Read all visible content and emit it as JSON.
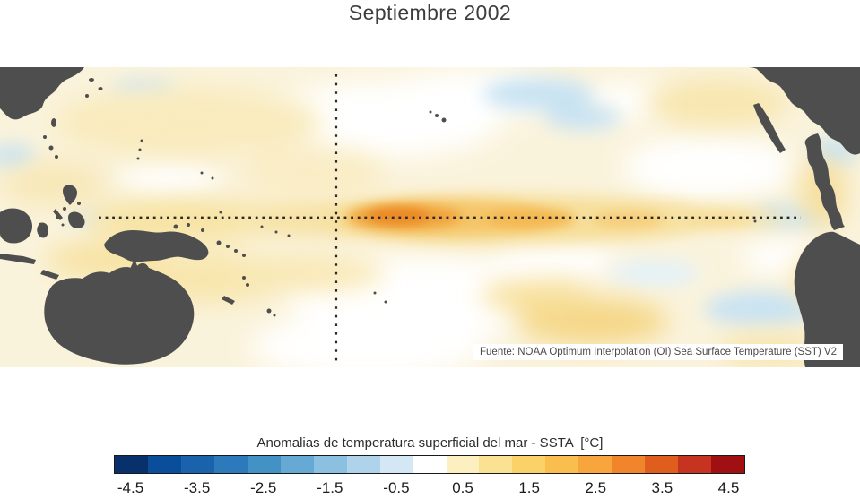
{
  "title": "Septiembre 2002",
  "map": {
    "source": "Fuente: NOAA Optimum Interpolation (OI) Sea Surface Temperature (SST) V2",
    "colors": {
      "land": "#4E4E4E",
      "ocean_base": "#FAF3DC",
      "reference_line": "#2A2A2A"
    }
  },
  "colorbar": {
    "title": "Anomalias de temperatura superficial del mar - SSTA  [°C]",
    "min": -4.75,
    "max": 4.75,
    "segment_step": 0.5,
    "colors": [
      "#08306B",
      "#0A4E9B",
      "#1A63AC",
      "#2C7ABB",
      "#4292C6",
      "#66A9D4",
      "#8CC0E0",
      "#AFD3EB",
      "#D3E7F5",
      "#FFFFFF",
      "#FCF0C0",
      "#FBE292",
      "#FAD268",
      "#F9BE4D",
      "#F7A53C",
      "#F1852B",
      "#E05E1D",
      "#C63321",
      "#A01013"
    ],
    "ticks": [
      -4.5,
      -3.5,
      -2.5,
      -1.5,
      -0.5,
      0.5,
      1.5,
      2.5,
      3.5,
      4.5
    ]
  }
}
